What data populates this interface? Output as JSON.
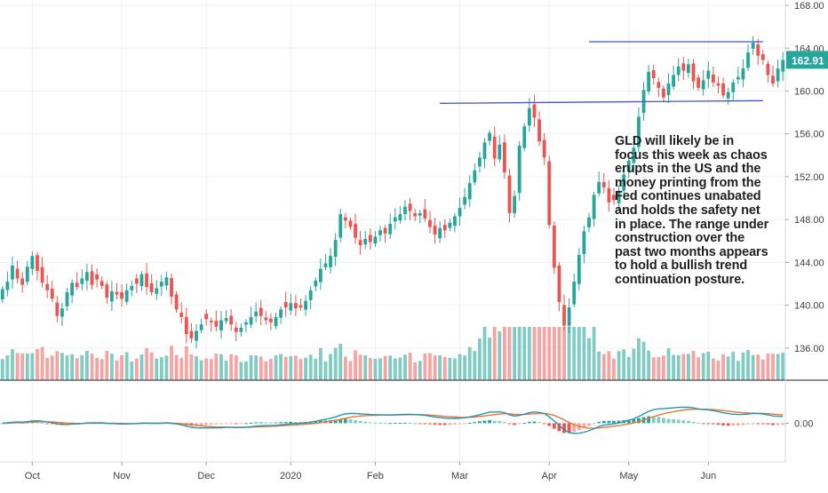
{
  "colors": {
    "up": "#26a69a",
    "down": "#ef5350",
    "up_vol": "#80cbc4",
    "down_vol": "#f7a3a1",
    "macd": "#2196b8",
    "signal": "#f0742c",
    "level": "#3f51d6",
    "price_tag": "#26a69a"
  },
  "annotation": "GLD will likely be in focus this week as chaos erupts in the US and the money printing from the Fed continues unabated and holds the safety net in place. The range under construction over the past two months appears to hold a bullish trend continuation posture.",
  "price_tag": "162.91",
  "chart_data": [
    {
      "type": "candlestick",
      "panel": "price",
      "ylim": [
        133,
        168.5
      ],
      "y_ticks": [
        "168.00",
        "164.00",
        "160.00",
        "156.00",
        "152.00",
        "148.00",
        "144.00",
        "140.00",
        "136.00"
      ],
      "x_ticks": [
        "Oct",
        "Nov",
        "Dec",
        "2020",
        "Feb",
        "Mar",
        "Apr",
        "May",
        "Jun"
      ],
      "last_price": 162.91,
      "levels": [
        {
          "value": 164.6
        },
        {
          "value": 159.1
        }
      ],
      "closes": [
        141.5,
        142.2,
        143.7,
        142.5,
        141.9,
        143.6,
        144.6,
        143.2,
        142.1,
        141.4,
        140.6,
        139.0,
        139.7,
        141.2,
        142.1,
        141.7,
        142.5,
        143.1,
        141.9,
        142.4,
        141.8,
        140.7,
        141.3,
        141.0,
        140.6,
        141.4,
        141.8,
        142.0,
        142.9,
        141.7,
        141.2,
        141.6,
        142.2,
        142.6,
        140.8,
        139.6,
        138.9,
        137.3,
        136.9,
        137.6,
        138.2,
        138.7,
        138.4,
        138.0,
        138.6,
        138.8,
        138.2,
        137.5,
        137.9,
        138.4,
        138.9,
        139.4,
        139.0,
        138.6,
        138.4,
        138.9,
        139.6,
        139.8,
        140.2,
        139.7,
        139.8,
        140.4,
        141.4,
        142.3,
        143.4,
        143.9,
        144.6,
        146.1,
        148.5,
        147.9,
        147.3,
        146.3,
        145.6,
        146.2,
        145.9,
        146.4,
        147.0,
        146.7,
        147.6,
        148.2,
        148.5,
        149.2,
        148.8,
        148.3,
        148.6,
        148.1,
        147.3,
        146.6,
        147.2,
        147.0,
        147.7,
        148.3,
        149.1,
        150.1,
        151.4,
        152.6,
        153.8,
        155.2,
        156.1,
        153.7,
        155.0,
        152.4,
        148.6,
        150.2,
        154.9,
        156.7,
        158.4,
        157.5,
        155.3,
        153.8,
        147.5,
        143.5,
        140.3,
        138.1,
        139.8,
        142.2,
        144.7,
        146.9,
        148.2,
        150.3,
        151.5,
        151.0,
        149.6,
        149.8,
        150.7,
        152.2,
        153.5,
        154.7,
        157.6,
        160.1,
        161.8,
        161.2,
        160.3,
        159.4,
        160.7,
        161.5,
        162.3,
        161.9,
        162.5,
        160.9,
        160.3,
        161.0,
        161.9,
        160.8,
        160.5,
        159.6,
        159.9,
        160.8,
        161.3,
        162.1,
        163.6,
        164.5,
        163.3,
        162.9,
        161.5,
        160.7,
        162.1,
        162.9
      ],
      "volume_ylim": [
        0,
        120
      ]
    },
    {
      "type": "macd",
      "panel": "indicator",
      "ylim": [
        -4.5,
        5
      ],
      "y_ticks": [
        "0.00"
      ]
    }
  ]
}
